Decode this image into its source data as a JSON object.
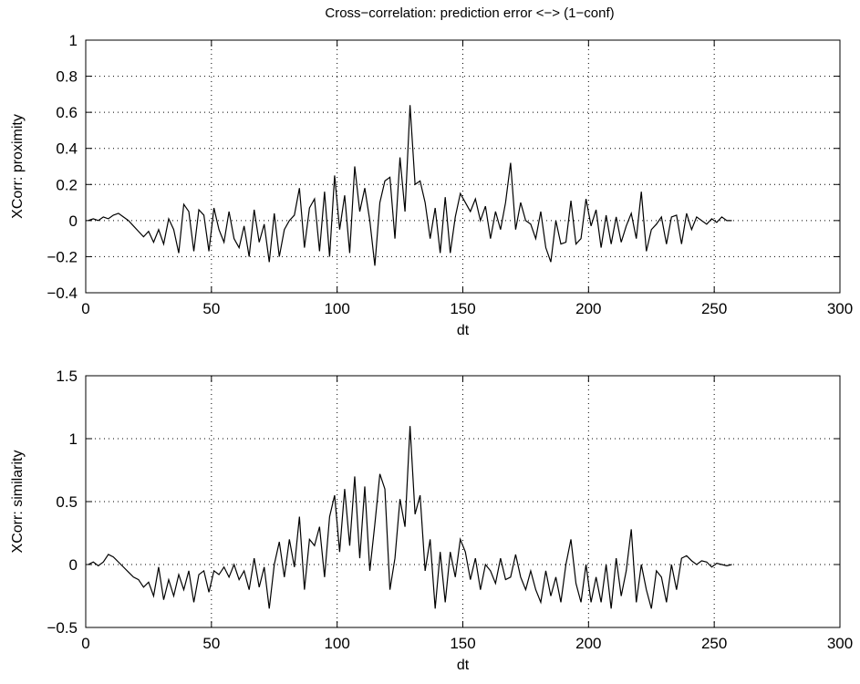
{
  "figure": {
    "title": "Cross−correlation: prediction error <−> (1−conf)"
  },
  "chart_data": [
    {
      "type": "line",
      "title": "Cross−correlation: prediction error <−> (1−conf)",
      "xlabel": "dt",
      "ylabel": "XCorr: proximity",
      "xlim": [
        0,
        300
      ],
      "ylim": [
        -0.4,
        1
      ],
      "xticks": [
        0,
        50,
        100,
        150,
        200,
        250,
        300
      ],
      "yticks": [
        -0.4,
        -0.2,
        0,
        0.2,
        0.4,
        0.6,
        0.8,
        1
      ],
      "xtick_labels": [
        "0",
        "50",
        "100",
        "150",
        "200",
        "250",
        "300"
      ],
      "ytick_labels": [
        "−0.4",
        "−0.2",
        "0",
        "0.2",
        "0.4",
        "0.6",
        "0.8",
        "1"
      ],
      "grid": true,
      "grid_style": "dotted",
      "line_color": "#000000",
      "series": [
        {
          "x": [
            1,
            3,
            5,
            7,
            9,
            11,
            13,
            15,
            17,
            19,
            21,
            23,
            25,
            27,
            29,
            31,
            33,
            35,
            37,
            39,
            41,
            43,
            45,
            47,
            49,
            51,
            53,
            55,
            57,
            59,
            61,
            63,
            65,
            67,
            69,
            71,
            73,
            75,
            77,
            79,
            81,
            83,
            85,
            87,
            89,
            91,
            93,
            95,
            97,
            99,
            101,
            103,
            105,
            107,
            109,
            111,
            113,
            115,
            117,
            119,
            121,
            123,
            125,
            127,
            129,
            131,
            133,
            135,
            137,
            139,
            141,
            143,
            145,
            147,
            149,
            151,
            153,
            155,
            157,
            159,
            161,
            163,
            165,
            167,
            169,
            171,
            173,
            175,
            177,
            179,
            181,
            183,
            185,
            187,
            189,
            191,
            193,
            195,
            197,
            199,
            201,
            203,
            205,
            207,
            209,
            211,
            213,
            215,
            217,
            219,
            221,
            223,
            225,
            227,
            229,
            231,
            233,
            235,
            237,
            239,
            241,
            243,
            245,
            247,
            249,
            251,
            253,
            255,
            257
          ],
          "values": [
            0.0,
            0.01,
            0.0,
            0.02,
            0.01,
            0.03,
            0.04,
            0.02,
            0.0,
            -0.03,
            -0.06,
            -0.09,
            -0.06,
            -0.12,
            -0.05,
            -0.13,
            0.01,
            -0.05,
            -0.18,
            0.09,
            0.05,
            -0.17,
            0.06,
            0.03,
            -0.17,
            0.07,
            -0.05,
            -0.12,
            0.05,
            -0.1,
            -0.15,
            -0.03,
            -0.2,
            0.06,
            -0.12,
            -0.02,
            -0.23,
            0.04,
            -0.2,
            -0.05,
            0.0,
            0.03,
            0.18,
            -0.15,
            0.07,
            0.12,
            -0.17,
            0.16,
            -0.2,
            0.25,
            -0.05,
            0.14,
            -0.18,
            0.3,
            0.05,
            0.18,
            0.0,
            -0.25,
            0.1,
            0.22,
            0.24,
            -0.1,
            0.35,
            0.05,
            0.64,
            0.2,
            0.22,
            0.1,
            -0.1,
            0.07,
            -0.18,
            0.13,
            -0.18,
            0.02,
            0.15,
            0.1,
            0.05,
            0.12,
            0.0,
            0.08,
            -0.1,
            0.05,
            -0.05,
            0.1,
            0.32,
            -0.05,
            0.1,
            0.0,
            -0.02,
            -0.1,
            0.05,
            -0.15,
            -0.23,
            0.0,
            -0.13,
            -0.12,
            0.11,
            -0.13,
            -0.1,
            0.12,
            -0.03,
            0.06,
            -0.15,
            0.03,
            -0.13,
            0.02,
            -0.12,
            -0.03,
            0.04,
            -0.1,
            0.16,
            -0.17,
            -0.05,
            -0.02,
            0.02,
            -0.13,
            0.02,
            0.03,
            -0.13,
            0.04,
            -0.05,
            0.02,
            0.0,
            -0.02,
            0.01,
            -0.01,
            0.02,
            0.0,
            0.0
          ]
        }
      ]
    },
    {
      "type": "line",
      "xlabel": "dt",
      "ylabel": "XCorr: similarity",
      "xlim": [
        0,
        300
      ],
      "ylim": [
        -0.5,
        1.5
      ],
      "xticks": [
        0,
        50,
        100,
        150,
        200,
        250,
        300
      ],
      "yticks": [
        -0.5,
        0,
        0.5,
        1,
        1.5
      ],
      "xtick_labels": [
        "0",
        "50",
        "100",
        "150",
        "200",
        "250",
        "300"
      ],
      "ytick_labels": [
        "−0.5",
        "0",
        "0.5",
        "1",
        "1.5"
      ],
      "grid": true,
      "grid_style": "dotted",
      "line_color": "#000000",
      "series": [
        {
          "x": [
            1,
            3,
            5,
            7,
            9,
            11,
            13,
            15,
            17,
            19,
            21,
            23,
            25,
            27,
            29,
            31,
            33,
            35,
            37,
            39,
            41,
            43,
            45,
            47,
            49,
            51,
            53,
            55,
            57,
            59,
            61,
            63,
            65,
            67,
            69,
            71,
            73,
            75,
            77,
            79,
            81,
            83,
            85,
            87,
            89,
            91,
            93,
            95,
            97,
            99,
            101,
            103,
            105,
            107,
            109,
            111,
            113,
            115,
            117,
            119,
            121,
            123,
            125,
            127,
            129,
            131,
            133,
            135,
            137,
            139,
            141,
            143,
            145,
            147,
            149,
            151,
            153,
            155,
            157,
            159,
            161,
            163,
            165,
            167,
            169,
            171,
            173,
            175,
            177,
            179,
            181,
            183,
            185,
            187,
            189,
            191,
            193,
            195,
            197,
            199,
            201,
            203,
            205,
            207,
            209,
            211,
            213,
            215,
            217,
            219,
            221,
            223,
            225,
            227,
            229,
            231,
            233,
            235,
            237,
            239,
            241,
            243,
            245,
            247,
            249,
            251,
            253,
            255,
            257
          ],
          "values": [
            0.0,
            0.02,
            -0.01,
            0.02,
            0.08,
            0.06,
            0.02,
            -0.02,
            -0.06,
            -0.1,
            -0.12,
            -0.18,
            -0.14,
            -0.25,
            -0.02,
            -0.28,
            -0.12,
            -0.25,
            -0.08,
            -0.2,
            -0.05,
            -0.3,
            -0.08,
            -0.05,
            -0.22,
            -0.05,
            -0.08,
            -0.02,
            -0.1,
            0.0,
            -0.12,
            -0.05,
            -0.2,
            0.05,
            -0.18,
            -0.02,
            -0.35,
            0.0,
            0.18,
            -0.1,
            0.2,
            -0.02,
            0.38,
            -0.2,
            0.2,
            0.15,
            0.3,
            -0.1,
            0.38,
            0.55,
            0.1,
            0.6,
            0.15,
            0.7,
            0.05,
            0.62,
            -0.05,
            0.32,
            0.72,
            0.6,
            -0.2,
            0.05,
            0.52,
            0.3,
            1.1,
            0.4,
            0.55,
            -0.05,
            0.2,
            -0.35,
            0.1,
            -0.3,
            0.1,
            -0.1,
            0.2,
            0.1,
            -0.12,
            0.05,
            -0.2,
            0.0,
            -0.05,
            -0.15,
            0.05,
            -0.12,
            -0.1,
            0.08,
            -0.1,
            -0.2,
            -0.05,
            -0.2,
            -0.3,
            -0.05,
            -0.25,
            -0.1,
            -0.3,
            0.0,
            0.2,
            -0.15,
            -0.3,
            0.0,
            -0.3,
            -0.1,
            -0.3,
            0.0,
            -0.35,
            0.05,
            -0.25,
            -0.05,
            0.28,
            -0.3,
            0.0,
            -0.2,
            -0.35,
            -0.05,
            -0.1,
            -0.3,
            0.0,
            -0.2,
            0.05,
            0.07,
            0.03,
            0.0,
            0.03,
            0.02,
            -0.02,
            0.01,
            0.0,
            -0.01,
            0.0
          ]
        }
      ]
    }
  ]
}
